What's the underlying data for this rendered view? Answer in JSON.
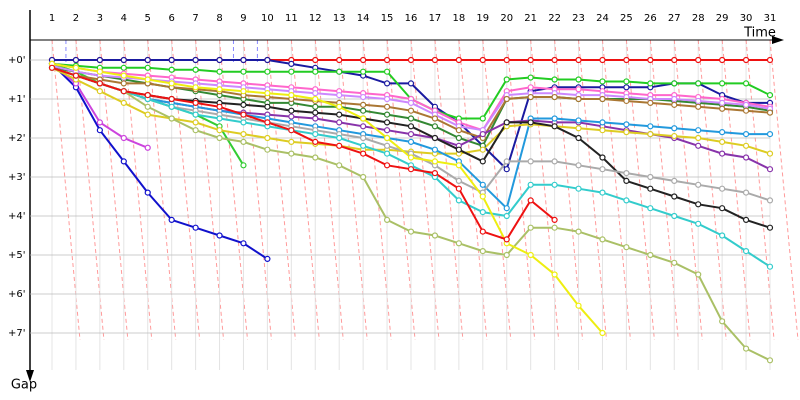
{
  "chart_data": {
    "type": "line",
    "x_label": "Time",
    "y_label": "Gap",
    "categories": [
      "1",
      "2",
      "3",
      "4",
      "5",
      "6",
      "7",
      "8",
      "9",
      "10",
      "11",
      "12",
      "13",
      "14",
      "15",
      "16",
      "17",
      "18",
      "19",
      "20",
      "21",
      "22",
      "23",
      "24",
      "25",
      "26",
      "27",
      "28",
      "29",
      "30",
      "31"
    ],
    "ylim": [
      0,
      8.3
    ],
    "yticks": [
      {
        "value": 0,
        "label": "+0'"
      },
      {
        "value": 1,
        "label": "+1'"
      },
      {
        "value": 2,
        "label": "+2'"
      },
      {
        "value": 3,
        "label": "+3'"
      },
      {
        "value": 4,
        "label": "+4'"
      },
      {
        "value": 5,
        "label": "+5'"
      },
      {
        "value": 6,
        "label": "+6'"
      },
      {
        "value": 7,
        "label": "+7'"
      }
    ],
    "grid": true,
    "series": [
      {
        "color": "#ee1111",
        "values": [
          0,
          0,
          0,
          0,
          0,
          0,
          0,
          0,
          0,
          0,
          0,
          0,
          0,
          0,
          0,
          0,
          0,
          0,
          0,
          0,
          0,
          0,
          0,
          0,
          0,
          0,
          0,
          0,
          0,
          0,
          0
        ]
      },
      {
        "color": "#1111cc",
        "values": [
          0.1,
          0.7,
          1.8,
          2.6,
          3.4,
          4.1,
          4.3,
          4.5,
          4.7,
          5.1,
          null,
          null,
          null,
          null,
          null,
          null,
          null,
          null,
          null,
          null,
          null,
          null,
          null,
          null,
          null,
          null,
          null,
          null,
          null,
          null,
          null
        ]
      },
      {
        "color": "#cc44dd",
        "values": [
          0.1,
          0.6,
          1.6,
          2.0,
          2.25,
          null,
          null,
          null,
          null,
          null,
          null,
          null,
          null,
          null,
          null,
          null,
          null,
          null,
          null,
          null,
          null,
          null,
          null,
          null,
          null,
          null,
          null,
          null,
          null,
          null,
          null
        ]
      },
      {
        "color": "#33cc33",
        "values": [
          0.1,
          0.3,
          0.6,
          0.8,
          1.0,
          1.2,
          1.4,
          1.7,
          2.7,
          null,
          null,
          null,
          null,
          null,
          null,
          null,
          null,
          null,
          null,
          null,
          null,
          null,
          null,
          null,
          null,
          null,
          null,
          null,
          null,
          null,
          null
        ]
      },
      {
        "color": "#1a1aa0",
        "values": [
          0,
          0,
          0,
          0,
          0,
          0,
          0,
          0,
          0,
          0,
          0.1,
          0.2,
          0.3,
          0.4,
          0.6,
          0.6,
          1.2,
          1.6,
          2.2,
          2.8,
          0.8,
          0.7,
          0.7,
          0.7,
          0.7,
          0.7,
          0.6,
          0.6,
          0.9,
          1.1,
          1.1
        ]
      },
      {
        "color": "#22cc22",
        "values": [
          0.1,
          0.15,
          0.2,
          0.2,
          0.2,
          0.25,
          0.25,
          0.3,
          0.3,
          0.3,
          0.3,
          0.3,
          0.3,
          0.3,
          0.3,
          1.0,
          1.3,
          1.5,
          1.5,
          0.5,
          0.45,
          0.5,
          0.5,
          0.55,
          0.55,
          0.6,
          0.6,
          0.6,
          0.6,
          0.6,
          0.9
        ]
      },
      {
        "color": "#338833",
        "values": [
          0.2,
          0.3,
          0.4,
          0.5,
          0.6,
          0.7,
          0.8,
          0.9,
          1.0,
          1.1,
          1.1,
          1.2,
          1.2,
          1.3,
          1.4,
          1.5,
          1.7,
          2.0,
          2.2,
          1.0,
          0.95,
          0.95,
          1.0,
          1.0,
          1.0,
          1.0,
          1.05,
          1.1,
          1.15,
          1.2,
          1.3
        ]
      },
      {
        "color": "#ff66cc",
        "values": [
          0.1,
          0.2,
          0.3,
          0.35,
          0.4,
          0.45,
          0.5,
          0.55,
          0.6,
          0.65,
          0.7,
          0.75,
          0.8,
          0.85,
          0.9,
          1.0,
          1.3,
          1.6,
          1.8,
          0.8,
          0.7,
          0.75,
          0.75,
          0.8,
          0.85,
          0.9,
          0.9,
          0.95,
          1.0,
          1.1,
          1.2
        ]
      },
      {
        "color": "#cc88ff",
        "values": [
          0.15,
          0.3,
          0.4,
          0.45,
          0.5,
          0.55,
          0.6,
          0.65,
          0.7,
          0.75,
          0.8,
          0.85,
          0.9,
          0.95,
          1.0,
          1.1,
          1.4,
          1.7,
          1.8,
          0.9,
          0.85,
          0.85,
          0.9,
          0.9,
          0.95,
          1.0,
          1.0,
          1.05,
          1.1,
          1.15,
          1.25
        ]
      },
      {
        "color": "#aa7733",
        "values": [
          0.2,
          0.4,
          0.5,
          0.6,
          0.6,
          0.7,
          0.75,
          0.8,
          0.9,
          0.95,
          1.0,
          1.05,
          1.1,
          1.15,
          1.2,
          1.3,
          1.5,
          1.8,
          2.0,
          1.0,
          0.95,
          0.95,
          1.0,
          1.0,
          1.05,
          1.1,
          1.15,
          1.2,
          1.25,
          1.3,
          1.35
        ]
      },
      {
        "color": "#8833aa",
        "values": [
          0.2,
          0.4,
          0.6,
          0.8,
          1.0,
          1.1,
          1.2,
          1.3,
          1.35,
          1.4,
          1.45,
          1.5,
          1.6,
          1.7,
          1.8,
          1.9,
          2.0,
          2.2,
          1.9,
          1.6,
          1.55,
          1.6,
          1.6,
          1.7,
          1.8,
          1.9,
          2.0,
          2.2,
          2.4,
          2.5,
          2.8
        ]
      },
      {
        "color": "#ddcc22",
        "values": [
          0.2,
          0.5,
          0.8,
          1.1,
          1.4,
          1.5,
          1.6,
          1.8,
          1.9,
          2.0,
          2.1,
          2.15,
          2.2,
          2.3,
          2.3,
          2.35,
          2.4,
          2.4,
          2.3,
          1.7,
          1.65,
          1.7,
          1.75,
          1.8,
          1.85,
          1.9,
          1.95,
          2.0,
          2.1,
          2.2,
          2.4
        ]
      },
      {
        "color": "#2299dd",
        "values": [
          0.2,
          0.4,
          0.6,
          0.8,
          1.0,
          1.1,
          1.2,
          1.3,
          1.4,
          1.5,
          1.6,
          1.7,
          1.8,
          1.9,
          2.0,
          2.1,
          2.3,
          2.6,
          3.2,
          3.8,
          1.5,
          1.5,
          1.55,
          1.6,
          1.65,
          1.7,
          1.75,
          1.8,
          1.85,
          1.9,
          1.9
        ]
      },
      {
        "color": "#222222",
        "values": [
          0.2,
          0.4,
          0.6,
          0.8,
          0.9,
          1.0,
          1.05,
          1.1,
          1.15,
          1.2,
          1.3,
          1.35,
          1.4,
          1.5,
          1.6,
          1.7,
          2.0,
          2.3,
          2.6,
          1.6,
          1.6,
          1.7,
          2.0,
          2.5,
          3.1,
          3.3,
          3.5,
          3.7,
          3.8,
          4.1,
          4.3
        ]
      },
      {
        "color": "#aaaaaa",
        "values": [
          0.2,
          0.4,
          0.6,
          0.8,
          1.0,
          1.2,
          1.3,
          1.4,
          1.5,
          1.6,
          1.7,
          1.8,
          1.9,
          2.0,
          2.2,
          2.4,
          2.7,
          3.1,
          3.4,
          2.6,
          2.6,
          2.6,
          2.7,
          2.8,
          2.9,
          3.0,
          3.1,
          3.2,
          3.3,
          3.4,
          3.6
        ]
      },
      {
        "color": "#33cccc",
        "values": [
          0.2,
          0.4,
          0.6,
          0.8,
          1.0,
          1.2,
          1.4,
          1.5,
          1.6,
          1.7,
          1.8,
          1.9,
          2.0,
          2.2,
          2.4,
          2.7,
          3.0,
          3.6,
          3.9,
          4.0,
          3.2,
          3.2,
          3.3,
          3.4,
          3.6,
          3.8,
          4.0,
          4.2,
          4.5,
          4.9,
          5.3
        ]
      },
      {
        "color": "#aac066",
        "values": [
          0.2,
          0.4,
          0.6,
          0.8,
          1.2,
          1.5,
          1.8,
          2.0,
          2.1,
          2.3,
          2.4,
          2.5,
          2.7,
          3.0,
          4.1,
          4.4,
          4.5,
          4.7,
          4.9,
          5.0,
          4.3,
          4.3,
          4.4,
          4.6,
          4.8,
          5.0,
          5.2,
          5.5,
          6.7,
          7.4,
          7.7
        ]
      },
      {
        "color": "#eeee11",
        "values": [
          0.1,
          0.2,
          0.3,
          0.4,
          0.5,
          0.6,
          0.7,
          0.75,
          0.8,
          0.85,
          0.9,
          1.0,
          1.2,
          1.5,
          2.0,
          2.5,
          2.6,
          2.7,
          3.5,
          4.7,
          5.0,
          5.5,
          6.3,
          7.0,
          null,
          null,
          null,
          null,
          null,
          null,
          null
        ]
      },
      {
        "color": "#ee1111",
        "values": [
          0.2,
          0.4,
          0.6,
          0.8,
          0.9,
          1.0,
          1.1,
          1.2,
          1.4,
          1.6,
          1.8,
          2.1,
          2.2,
          2.4,
          2.7,
          2.8,
          2.9,
          3.3,
          4.4,
          4.6,
          3.6,
          4.1,
          null,
          null,
          null,
          null,
          null,
          null,
          null,
          null,
          null
        ]
      }
    ]
  }
}
